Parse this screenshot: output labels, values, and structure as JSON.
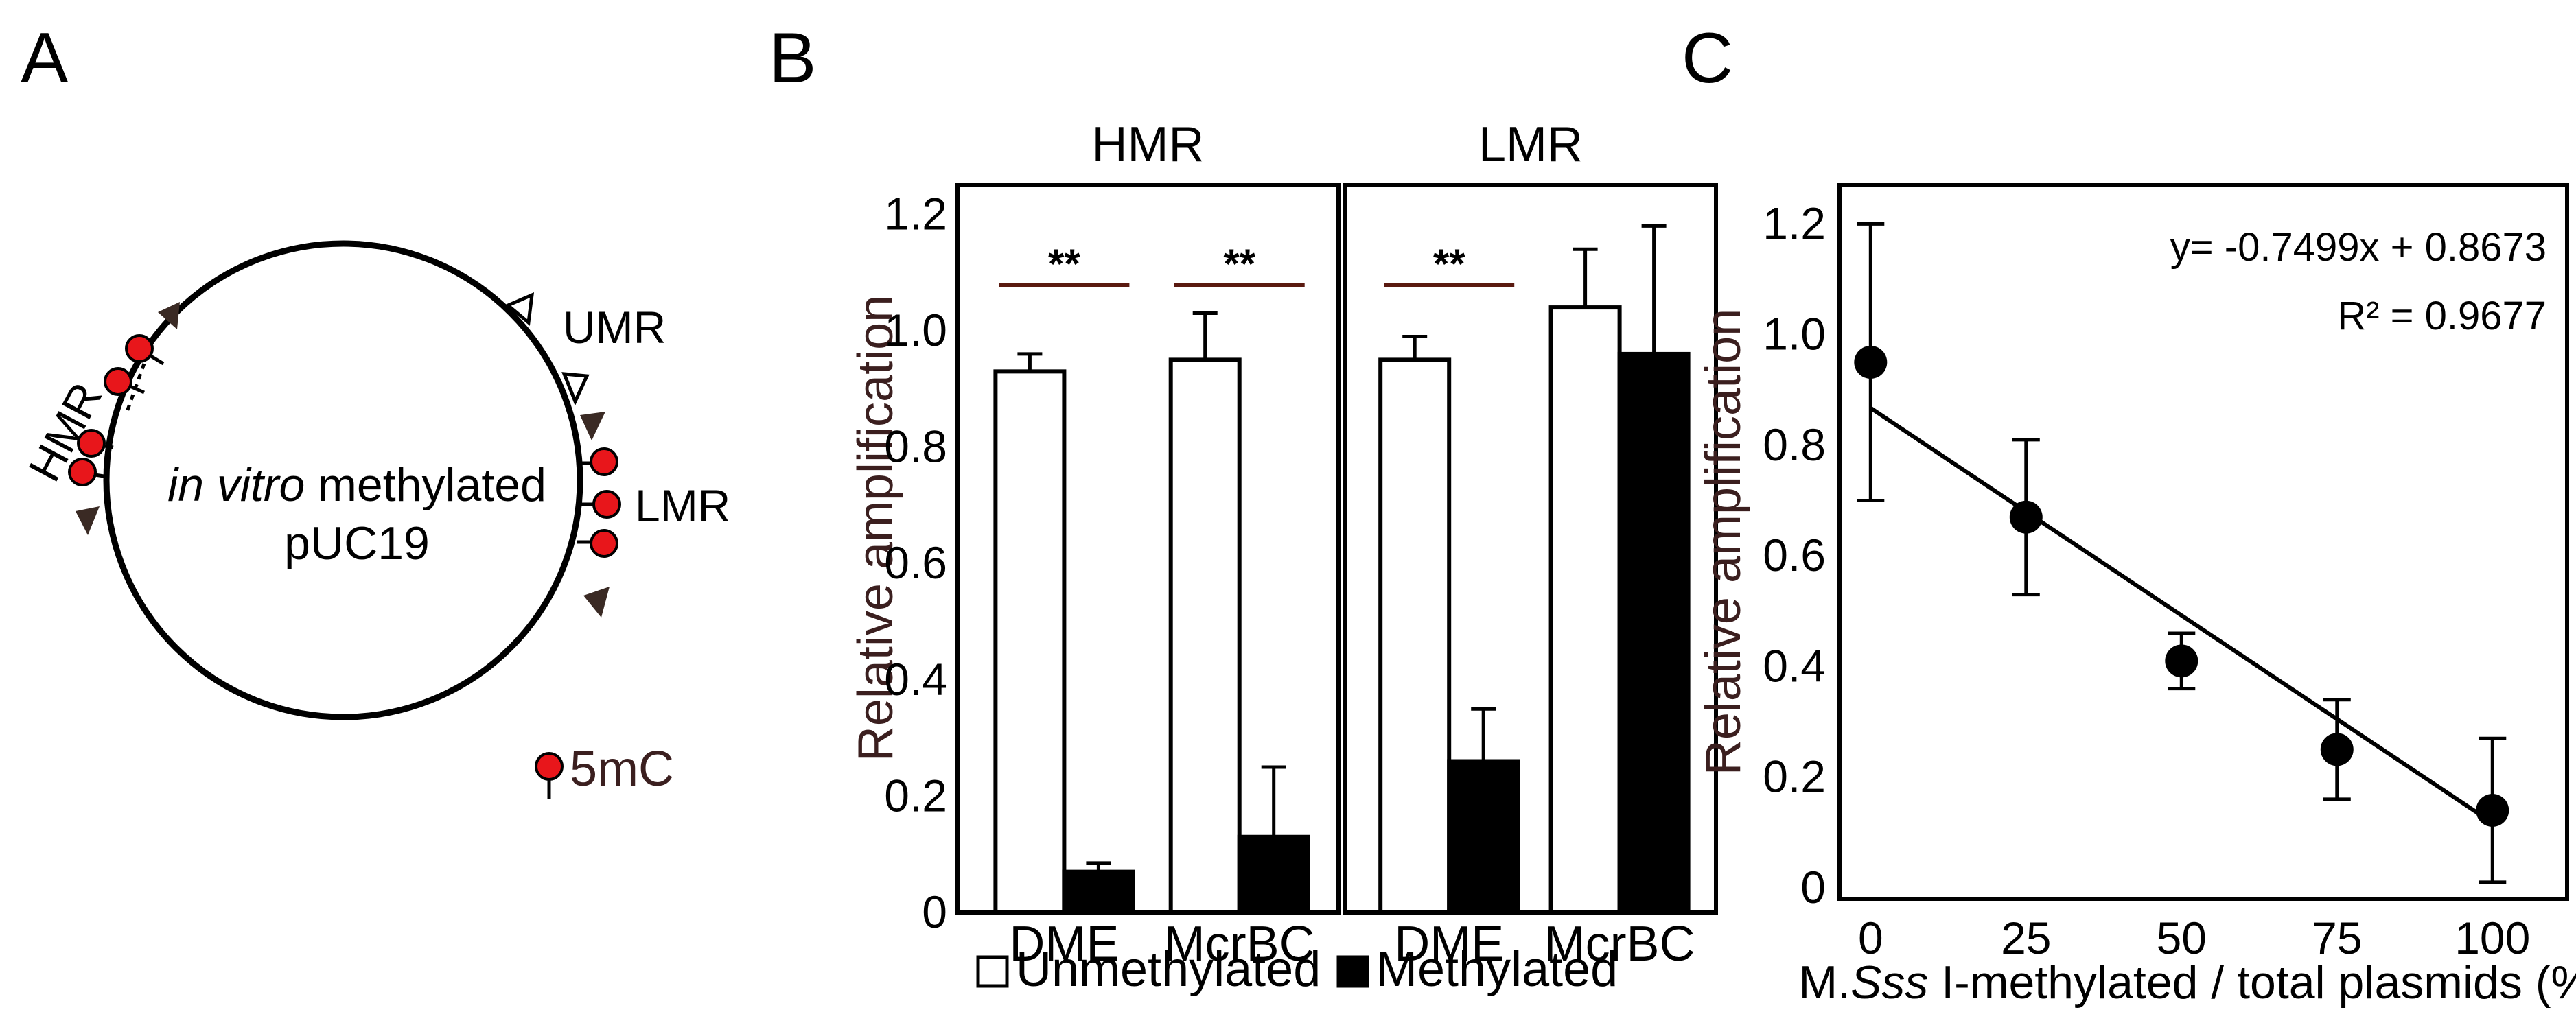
{
  "figure": {
    "panels": [
      "A",
      "B",
      "C"
    ],
    "colors": {
      "methyl_dot": "#e8161b",
      "triangle": "#3a2a24",
      "sig_line": "#5a1a10",
      "ylabel": "#3b1f1f"
    }
  },
  "panel_a": {
    "circle_label_italic": "in vitro",
    "circle_label_rest": " methylated",
    "circle_label_line2": "pUC19",
    "region_hmr": "HMR",
    "region_umr": "UMR",
    "region_lmr": "LMR",
    "legend_5mc": "5mC"
  },
  "chart_data": [
    {
      "type": "bar",
      "ylabel": "Relative amplification",
      "ylim": [
        0,
        1.25
      ],
      "yticks": [
        0,
        0.2,
        0.4,
        0.6,
        0.8,
        1.0,
        1.2
      ],
      "ytick_labels": [
        "0",
        "0.2",
        "0.4",
        "0.6",
        "0.8",
        "1.0",
        "1.2"
      ],
      "legend": [
        "Unmethylated",
        "Methylated"
      ],
      "legend_position": "bottom",
      "facets": [
        {
          "title": "HMR",
          "categories": [
            "DME",
            "McrBC"
          ],
          "series": [
            {
              "name": "Unmethylated",
              "values": [
                0.93,
                0.95
              ],
              "errors": [
                0.03,
                0.08
              ]
            },
            {
              "name": "Methylated",
              "values": [
                0.07,
                0.13
              ],
              "errors": [
                0.015,
                0.12
              ]
            }
          ],
          "significance": [
            "**",
            "**"
          ]
        },
        {
          "title": "LMR",
          "categories": [
            "DME",
            "McrBC"
          ],
          "series": [
            {
              "name": "Unmethylated",
              "values": [
                0.95,
                1.04
              ],
              "errors": [
                0.04,
                0.1
              ]
            },
            {
              "name": "Methylated",
              "values": [
                0.26,
                0.96
              ],
              "errors": [
                0.09,
                0.22
              ]
            }
          ],
          "significance": [
            "**",
            ""
          ]
        }
      ]
    },
    {
      "type": "scatter",
      "xlabel_pre": "M.",
      "xlabel_italic": "Sss",
      "xlabel_post": " I-methylated / total plasmids (%)",
      "ylabel": "Relative amplification",
      "xlim": [
        -5,
        112
      ],
      "ylim": [
        -0.02,
        1.27
      ],
      "xticks": [
        0,
        25,
        50,
        75,
        100
      ],
      "yticks": [
        0,
        0.2,
        0.4,
        0.6,
        0.8,
        1.0,
        1.2
      ],
      "ytick_labels": [
        "0",
        "0.2",
        "0.4",
        "0.6",
        "0.8",
        "1.0",
        "1.2"
      ],
      "points": [
        {
          "x": 0,
          "y": 0.95,
          "err": 0.25
        },
        {
          "x": 25,
          "y": 0.67,
          "err": 0.14
        },
        {
          "x": 50,
          "y": 0.41,
          "err": 0.05
        },
        {
          "x": 75,
          "y": 0.25,
          "err": 0.09
        },
        {
          "x": 100,
          "y": 0.14,
          "err": 0.13
        }
      ],
      "fit": {
        "slope": -0.7499,
        "intercept": 0.8673
      },
      "equation": "y= -0.7499x + 0.8673",
      "r2": "R² = 0.9677"
    }
  ]
}
